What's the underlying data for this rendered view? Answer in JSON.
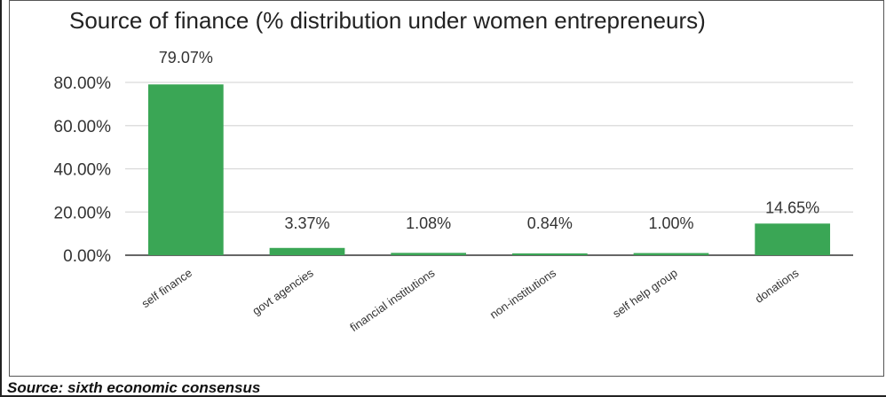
{
  "source_note": "Source: sixth economic consensus",
  "colors": {
    "bar": "#3aa655",
    "grid": "#d9d9d9",
    "axis": "#333333",
    "text": "#333333"
  },
  "chart_data": {
    "type": "bar",
    "title": "Source of finance (% distribution under women entrepreneurs)",
    "categories": [
      "self finance",
      "govt agencies",
      "financial institutions",
      "non-institutions",
      "self help group",
      "donations"
    ],
    "values": [
      79.07,
      3.37,
      1.08,
      0.84,
      1.0,
      14.65
    ],
    "data_labels": [
      "79.07%",
      "3.37%",
      "1.08%",
      "0.84%",
      "1.00%",
      "14.65%"
    ],
    "y_ticks": [
      0,
      20,
      40,
      60,
      80
    ],
    "y_tick_labels": [
      "0.00%",
      "20.00%",
      "40.00%",
      "60.00%",
      "80.00%"
    ],
    "ylim": [
      0,
      80
    ],
    "xlabel": "",
    "ylabel": "",
    "grid": true,
    "legend": "none"
  }
}
